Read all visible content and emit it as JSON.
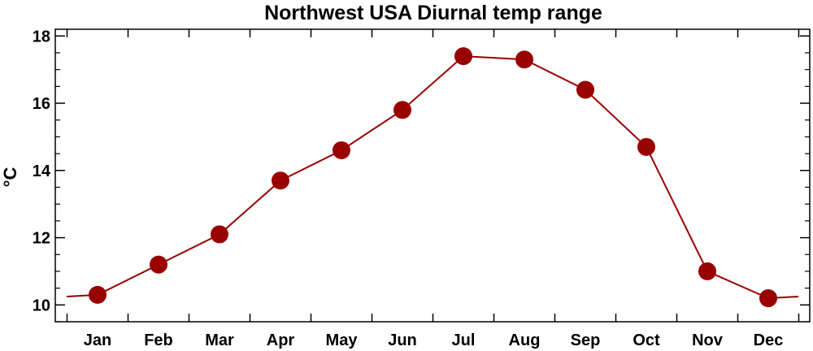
{
  "chart_data": {
    "type": "line",
    "title": "Northwest USA Diurnal temp range",
    "xlabel": "",
    "ylabel": "°C",
    "categories": [
      "Jan",
      "Feb",
      "Mar",
      "Apr",
      "May",
      "Jun",
      "Jul",
      "Aug",
      "Sep",
      "Oct",
      "Nov",
      "Dec"
    ],
    "series": [
      {
        "values": [
          10.3,
          11.2,
          12.1,
          13.7,
          14.6,
          15.8,
          17.4,
          17.3,
          16.4,
          14.7,
          11.0,
          10.2
        ]
      }
    ],
    "ylim": [
      9.5,
      18.2
    ],
    "yticks": [
      10,
      12,
      14,
      16,
      18
    ],
    "grid": false,
    "legend": "none",
    "colors": {
      "line": "#990000",
      "marker": "#990000",
      "axis": "#000000"
    }
  }
}
